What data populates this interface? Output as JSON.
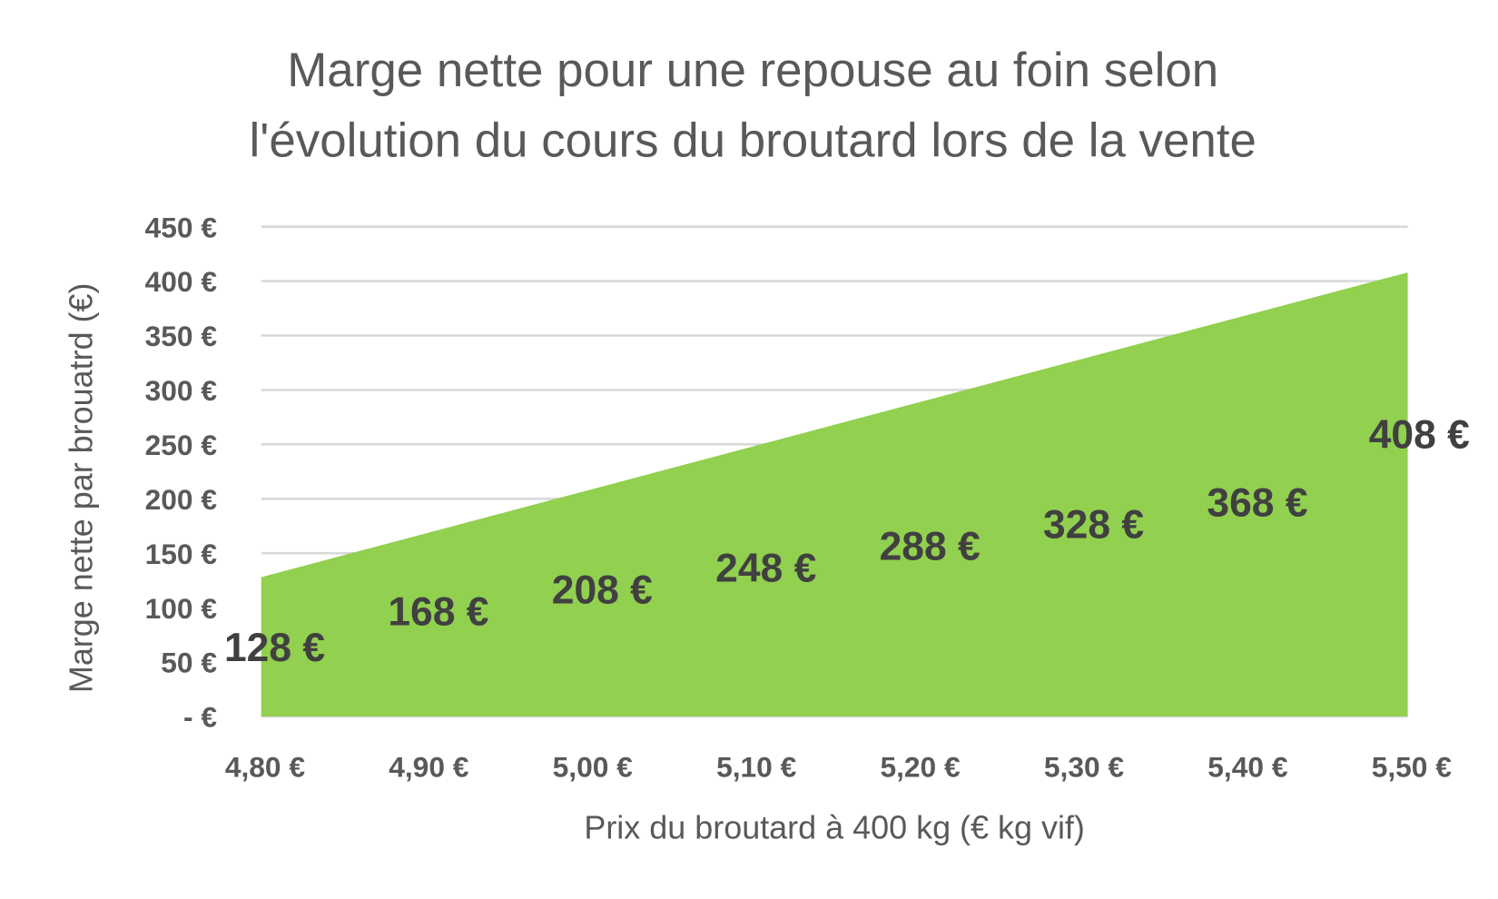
{
  "chart_data": {
    "type": "area",
    "title_lines": [
      "Marge nette pour une repouse au foin selon",
      "l'évolution du cours du broutard lors de la vente"
    ],
    "xlabel": "Prix du broutard à 400 kg (€ kg vif)",
    "ylabel": "Marge nette par brouatrd (€)",
    "categories": [
      "4,80 €",
      "4,90 €",
      "5,00 €",
      "5,10 €",
      "5,20 €",
      "5,30 €",
      "5,40 €",
      "5,50 €"
    ],
    "values": [
      128,
      168,
      208,
      248,
      288,
      328,
      368,
      408
    ],
    "data_labels": [
      "128 €",
      "168 €",
      "208 €",
      "248 €",
      "288 €",
      "328 €",
      "368 €",
      "408 €"
    ],
    "ylim": [
      0,
      450
    ],
    "yticks": [
      0,
      50,
      100,
      150,
      200,
      250,
      300,
      350,
      400,
      450
    ],
    "ytick_labels": [
      "-   €",
      "50 €",
      "100 €",
      "150 €",
      "200 €",
      "250 €",
      "300 €",
      "350 €",
      "400 €",
      "450 €"
    ],
    "grid": true,
    "legend": "none",
    "fill_color": "#92d050"
  }
}
